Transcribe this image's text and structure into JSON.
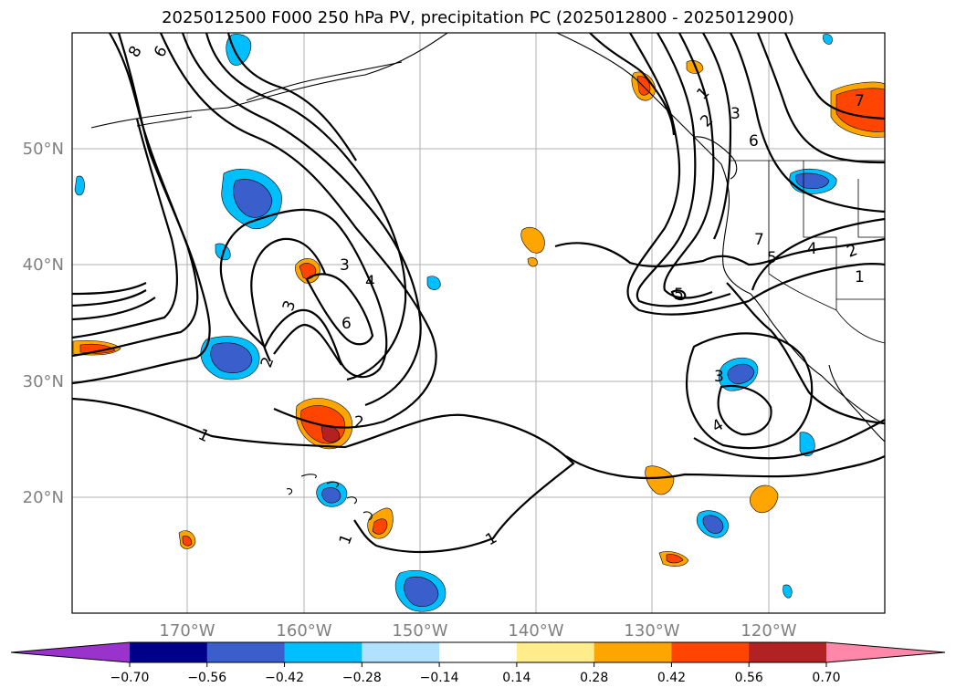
{
  "title": "2025012500 F000 250 hPa PV, precipitation PC (2025012800 - 2025012900)",
  "lon_labels": [
    "170°W",
    "160°W",
    "150°W",
    "140°W",
    "130°W",
    "120°W"
  ],
  "lat_labels": [
    "50°N",
    "40°N",
    "30°N",
    "20°N"
  ],
  "colorbar": {
    "tick_labels": [
      "−0.70",
      "−0.56",
      "−0.42",
      "−0.28",
      "−0.14",
      "0.14",
      "0.28",
      "0.42",
      "0.56",
      "0.70"
    ],
    "colors": [
      "#9933cc",
      "#00008b",
      "#3a5fcd",
      "#00bfff",
      "#b0e2ff",
      "#ffffff",
      "#ffec8b",
      "#ffa500",
      "#ff4500",
      "#b22222",
      "#ff88aa"
    ]
  },
  "contour_labels": [
    "8",
    "6",
    "1",
    "2",
    "3",
    "6",
    "3",
    "4",
    "6",
    "3",
    "2",
    "1",
    "2",
    "5",
    "7",
    "5",
    "4",
    "2",
    "1",
    "3",
    "4",
    "1",
    "1",
    "7"
  ]
}
